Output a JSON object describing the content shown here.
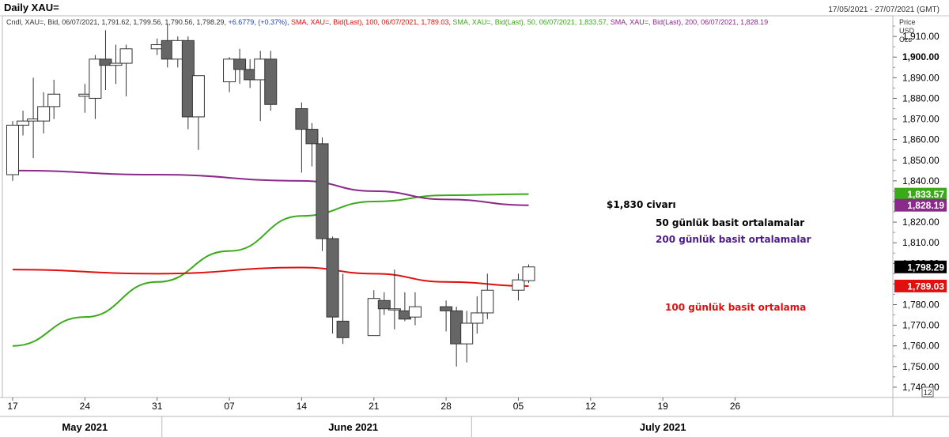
{
  "header": {
    "title": "Daily XAU=",
    "date_range": "17/05/2021 - 27/07/2021 (GMT)",
    "info": [
      {
        "text": "Cndl, XAU=, Bid, 06/07/2021, 1,791.62, 1,799.56, 1,790.56, 1,798.29, ",
        "color": "#333333"
      },
      {
        "text": "+6.6779, (+0.37%), ",
        "color": "#1f3fbf"
      },
      {
        "text": "SMA, XAU=, Bid(Last), 100, 06/07/2021, 1,789.03, ",
        "color": "#e01010"
      },
      {
        "text": "SMA, XAU=, Bid(Last), 50, 06/07/2021, 1,833.57, ",
        "color": "#3aaa1a"
      },
      {
        "text": "SMA, XAU=, Bid(Last), 200, 06/07/2021, 1,828.19",
        "color": "#8a2a8a"
      }
    ],
    "units": [
      "Price",
      "USD",
      "Ozs"
    ]
  },
  "chart_data": {
    "type": "candlestick",
    "ylim": [
      1735,
      1920
    ],
    "y_ticks": [
      1740,
      1750,
      1760,
      1770,
      1780,
      1790,
      1800,
      1810,
      1820,
      1830,
      1840,
      1850,
      1860,
      1870,
      1880,
      1890,
      1900,
      1910
    ],
    "y_tick_labels": [
      "1,740.00",
      "1,750.00",
      "1,760.00",
      "1,770.00",
      "1,780.00",
      "1,790.00",
      "1,800.00",
      "1,810.00",
      "1,820.00",
      "1,830.00",
      "1,840.00",
      "1,850.00",
      "1,860.00",
      "1,870.00",
      "1,880.00",
      "1,890.00",
      "1,900.00",
      "1,910.00"
    ],
    "bold_tick": 1900,
    "x_ticks": [
      {
        "date": "2021-05-17",
        "label": "17"
      },
      {
        "date": "2021-05-24",
        "label": "24"
      },
      {
        "date": "2021-05-31",
        "label": "31"
      },
      {
        "date": "2021-06-07",
        "label": "07"
      },
      {
        "date": "2021-06-14",
        "label": "14"
      },
      {
        "date": "2021-06-21",
        "label": "21"
      },
      {
        "date": "2021-06-28",
        "label": "28"
      },
      {
        "date": "2021-07-05",
        "label": "05"
      },
      {
        "date": "2021-07-12",
        "label": "12"
      },
      {
        "date": "2021-07-19",
        "label": "19"
      },
      {
        "date": "2021-07-26",
        "label": "26"
      }
    ],
    "month_labels": [
      {
        "date": "2021-05-24",
        "label": "May 2021"
      },
      {
        "date": "2021-06-19",
        "label": "June 2021"
      },
      {
        "date": "2021-07-19",
        "label": "July 2021"
      }
    ],
    "candles": [
      {
        "date": "2021-05-17",
        "o": 1843,
        "h": 1869,
        "l": 1840,
        "c": 1867
      },
      {
        "date": "2021-05-18",
        "o": 1867,
        "h": 1874,
        "l": 1862,
        "c": 1869
      },
      {
        "date": "2021-05-19",
        "o": 1869,
        "h": 1890,
        "l": 1851,
        "c": 1870
      },
      {
        "date": "2021-05-20",
        "o": 1869,
        "h": 1883,
        "l": 1863,
        "c": 1876
      },
      {
        "date": "2021-05-21",
        "o": 1876,
        "h": 1889,
        "l": 1870,
        "c": 1882
      },
      {
        "date": "2021-05-24",
        "o": 1881,
        "h": 1887,
        "l": 1873,
        "c": 1882
      },
      {
        "date": "2021-05-25",
        "o": 1880,
        "h": 1901,
        "l": 1870,
        "c": 1899
      },
      {
        "date": "2021-05-26",
        "o": 1899,
        "h": 1913,
        "l": 1884,
        "c": 1896
      },
      {
        "date": "2021-05-27",
        "o": 1896,
        "h": 1906,
        "l": 1887,
        "c": 1897
      },
      {
        "date": "2021-05-28",
        "o": 1897,
        "h": 1906,
        "l": 1881,
        "c": 1904
      },
      {
        "date": "2021-05-31",
        "o": 1904,
        "h": 1909,
        "l": 1901,
        "c": 1906
      },
      {
        "date": "2021-06-01",
        "o": 1908,
        "h": 1916,
        "l": 1895,
        "c": 1899
      },
      {
        "date": "2021-06-02",
        "o": 1899,
        "h": 1910,
        "l": 1895,
        "c": 1908
      },
      {
        "date": "2021-06-03",
        "o": 1908,
        "h": 1910,
        "l": 1865,
        "c": 1871
      },
      {
        "date": "2021-06-04",
        "o": 1871,
        "h": 1891,
        "l": 1855,
        "c": 1891
      },
      {
        "date": "2021-06-07",
        "o": 1888,
        "h": 1900,
        "l": 1883,
        "c": 1899
      },
      {
        "date": "2021-06-08",
        "o": 1899,
        "h": 1904,
        "l": 1887,
        "c": 1894
      },
      {
        "date": "2021-06-09",
        "o": 1894,
        "h": 1899,
        "l": 1885,
        "c": 1889
      },
      {
        "date": "2021-06-10",
        "o": 1889,
        "h": 1903,
        "l": 1869,
        "c": 1899
      },
      {
        "date": "2021-06-11",
        "o": 1899,
        "h": 1903,
        "l": 1874,
        "c": 1877
      },
      {
        "date": "2021-06-14",
        "o": 1875,
        "h": 1878,
        "l": 1844,
        "c": 1865
      },
      {
        "date": "2021-06-15",
        "o": 1865,
        "h": 1868,
        "l": 1847,
        "c": 1858
      },
      {
        "date": "2021-06-16",
        "o": 1858,
        "h": 1861,
        "l": 1806,
        "c": 1812
      },
      {
        "date": "2021-06-17",
        "o": 1812,
        "h": 1813,
        "l": 1766,
        "c": 1774
      },
      {
        "date": "2021-06-18",
        "o": 1772,
        "h": 1795,
        "l": 1761,
        "c": 1764
      },
      {
        "date": "2021-06-21",
        "o": 1765,
        "h": 1787,
        "l": 1765,
        "c": 1783
      },
      {
        "date": "2021-06-22",
        "o": 1782,
        "h": 1786,
        "l": 1775,
        "c": 1778
      },
      {
        "date": "2021-06-23",
        "o": 1778,
        "h": 1797,
        "l": 1768,
        "c": 1778
      },
      {
        "date": "2021-06-24",
        "o": 1777,
        "h": 1786,
        "l": 1772,
        "c": 1773
      },
      {
        "date": "2021-06-25",
        "o": 1774,
        "h": 1786,
        "l": 1770,
        "c": 1779
      },
      {
        "date": "2021-06-28",
        "o": 1779,
        "h": 1782,
        "l": 1767,
        "c": 1777
      },
      {
        "date": "2021-06-29",
        "o": 1777,
        "h": 1779,
        "l": 1750,
        "c": 1761
      },
      {
        "date": "2021-06-30",
        "o": 1761,
        "h": 1777,
        "l": 1752,
        "c": 1771
      },
      {
        "date": "2021-07-01",
        "o": 1771,
        "h": 1784,
        "l": 1766,
        "c": 1776
      },
      {
        "date": "2021-07-02",
        "o": 1776,
        "h": 1795,
        "l": 1773,
        "c": 1787
      },
      {
        "date": "2021-07-05",
        "o": 1787,
        "h": 1795,
        "l": 1782,
        "c": 1792
      },
      {
        "date": "2021-07-06",
        "o": 1791.62,
        "h": 1799.56,
        "l": 1790.56,
        "c": 1798.29
      }
    ],
    "series": [
      {
        "name": "SMA 50",
        "color": "#3aaa1a",
        "end_value": "1,833.57",
        "end_value_num": 1833.57,
        "points": [
          [
            "2021-05-17",
            1760
          ],
          [
            "2021-05-24",
            1774
          ],
          [
            "2021-05-31",
            1791
          ],
          [
            "2021-06-07",
            1806
          ],
          [
            "2021-06-14",
            1823
          ],
          [
            "2021-06-21",
            1830
          ],
          [
            "2021-06-28",
            1833
          ],
          [
            "2021-07-06",
            1833.57
          ]
        ]
      },
      {
        "name": "SMA 200",
        "color": "#8a2a8a",
        "end_value": "1,828.19",
        "end_value_num": 1828.19,
        "points": [
          [
            "2021-05-17",
            1845
          ],
          [
            "2021-05-31",
            1843
          ],
          [
            "2021-06-14",
            1840
          ],
          [
            "2021-06-21",
            1835
          ],
          [
            "2021-06-28",
            1831
          ],
          [
            "2021-07-06",
            1828.19
          ]
        ]
      },
      {
        "name": "SMA 100",
        "color": "#e01010",
        "end_value": "1,789.03",
        "end_value_num": 1789.03,
        "points": [
          [
            "2021-05-17",
            1797
          ],
          [
            "2021-05-31",
            1795
          ],
          [
            "2021-06-14",
            1798
          ],
          [
            "2021-06-21",
            1795
          ],
          [
            "2021-06-28",
            1791
          ],
          [
            "2021-07-06",
            1789.03
          ]
        ]
      }
    ],
    "last_price": {
      "value": "1,798.29",
      "value_num": 1798.29
    },
    "annotations": [
      {
        "text": "$1,830 civarı",
        "color": "#000000"
      },
      {
        "text": "50 günlük basit ortalamalar",
        "color": "#000000"
      },
      {
        "text": "200 günlük basit ortalamalar",
        "color": "#4b1c8c"
      },
      {
        "text": "100 günlük basit ortalama",
        "color": "#e01010"
      }
    ],
    "corner_label": "12"
  }
}
